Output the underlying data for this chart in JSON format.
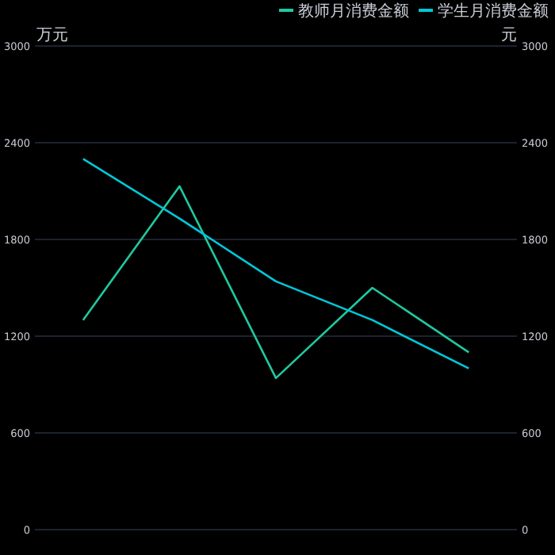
{
  "chart_data": {
    "type": "line",
    "categories": [
      null,
      null,
      null,
      null,
      null
    ],
    "series": [
      {
        "name": "教师月消费金额",
        "color": "#1fc9a0",
        "values": [
          1300,
          2130,
          940,
          1500,
          1100
        ]
      },
      {
        "name": "学生月消费金额",
        "color": "#00c8d8",
        "values": [
          2300,
          1930,
          1540,
          1300,
          1000
        ]
      }
    ],
    "ylabel": "万元",
    "y2label": "元",
    "ylim": [
      0,
      3000
    ],
    "yticks": [
      0,
      600,
      1200,
      1800,
      2400,
      3000
    ],
    "y2lim": [
      0,
      3000
    ],
    "y2ticks": [
      0,
      600,
      1200,
      1800,
      2400,
      3000
    ],
    "grid": "y",
    "legend": "top right",
    "marker": "none",
    "line_style": "solid"
  }
}
